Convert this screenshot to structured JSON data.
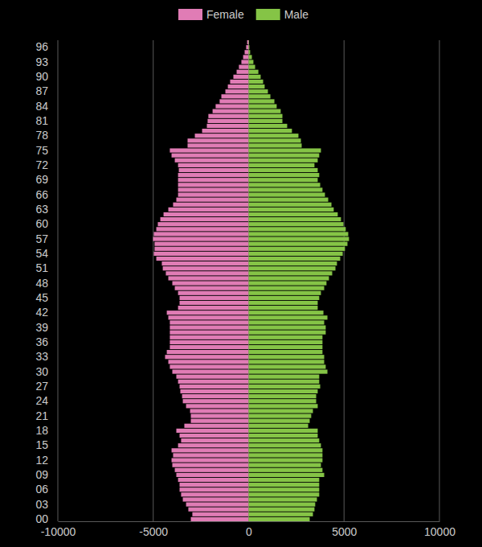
{
  "chart_data": {
    "type": "bar",
    "orientation": "horizontal",
    "stacked": true,
    "grid": true,
    "legend": "top",
    "categories": [
      "00",
      null,
      null,
      "03",
      null,
      null,
      "06",
      null,
      null,
      "09",
      null,
      null,
      "12",
      null,
      null,
      "15",
      null,
      null,
      "18",
      null,
      null,
      "21",
      null,
      null,
      "24",
      null,
      null,
      "27",
      null,
      null,
      "30",
      null,
      null,
      "33",
      null,
      null,
      "36",
      null,
      null,
      "39",
      null,
      null,
      "42",
      null,
      null,
      "45",
      null,
      null,
      "48",
      null,
      null,
      "51",
      null,
      null,
      "54",
      null,
      null,
      "57",
      null,
      null,
      "60",
      null,
      null,
      "63",
      null,
      null,
      "66",
      null,
      null,
      "69",
      null,
      null,
      "72",
      null,
      null,
      "75",
      null,
      null,
      "78",
      null,
      null,
      "81",
      null,
      null,
      "84",
      null,
      null,
      "87",
      null,
      null,
      "90",
      null,
      null,
      "93",
      null,
      null,
      "96",
      null
    ],
    "series": [
      {
        "name": "Female",
        "color": "#e07cb5",
        "values": [
          -3030,
          -2950,
          -3160,
          -3280,
          -3450,
          -3540,
          -3620,
          -3620,
          -3700,
          -3790,
          -3870,
          -4000,
          -4040,
          -3960,
          -4040,
          -3700,
          -3540,
          -3620,
          -3790,
          -3370,
          -3030,
          -3030,
          -3070,
          -3280,
          -3450,
          -3490,
          -3580,
          -3620,
          -3700,
          -3790,
          -4000,
          -4130,
          -4210,
          -4380,
          -4290,
          -4130,
          -4130,
          -4130,
          -4130,
          -4130,
          -4130,
          -4210,
          -4290,
          -3700,
          -3620,
          -3620,
          -3700,
          -3870,
          -4000,
          -4210,
          -4340,
          -4500,
          -4550,
          -4840,
          -4970,
          -4930,
          -4930,
          -5010,
          -4970,
          -4840,
          -4760,
          -4630,
          -4460,
          -4210,
          -3960,
          -3790,
          -3700,
          -3700,
          -3700,
          -3700,
          -3700,
          -3660,
          -3700,
          -3870,
          -4040,
          -4130,
          -3200,
          -3200,
          -2820,
          -2440,
          -2190,
          -2150,
          -2110,
          -1890,
          -1730,
          -1520,
          -1430,
          -1220,
          -1090,
          -970,
          -800,
          -630,
          -510,
          -380,
          -290,
          -210,
          -130,
          -80
        ]
      },
      {
        "name": "Male",
        "color": "#85c446",
        "values": [
          3200,
          3370,
          3450,
          3490,
          3580,
          3700,
          3700,
          3700,
          3700,
          3960,
          3870,
          3790,
          3870,
          3870,
          3870,
          3790,
          3700,
          3620,
          3620,
          3120,
          3200,
          3280,
          3370,
          3620,
          3540,
          3540,
          3620,
          3750,
          3700,
          3700,
          4130,
          4040,
          3960,
          3960,
          3870,
          3870,
          3870,
          3870,
          4040,
          4040,
          3960,
          4130,
          3920,
          3620,
          3620,
          3700,
          3790,
          3960,
          4080,
          4210,
          4380,
          4550,
          4630,
          4800,
          4930,
          5050,
          5180,
          5260,
          5220,
          5090,
          4970,
          4840,
          4670,
          4460,
          4340,
          4170,
          4000,
          3870,
          3750,
          3620,
          3700,
          3620,
          3450,
          3620,
          3700,
          3790,
          2780,
          2740,
          2610,
          2270,
          2020,
          1770,
          1770,
          1680,
          1470,
          1350,
          1140,
          1010,
          840,
          760,
          630,
          510,
          340,
          250,
          170,
          80,
          40,
          20
        ]
      }
    ],
    "xlim": [
      -10000,
      10000
    ],
    "xticks": [
      -10000,
      -5000,
      0,
      5000,
      10000
    ]
  }
}
